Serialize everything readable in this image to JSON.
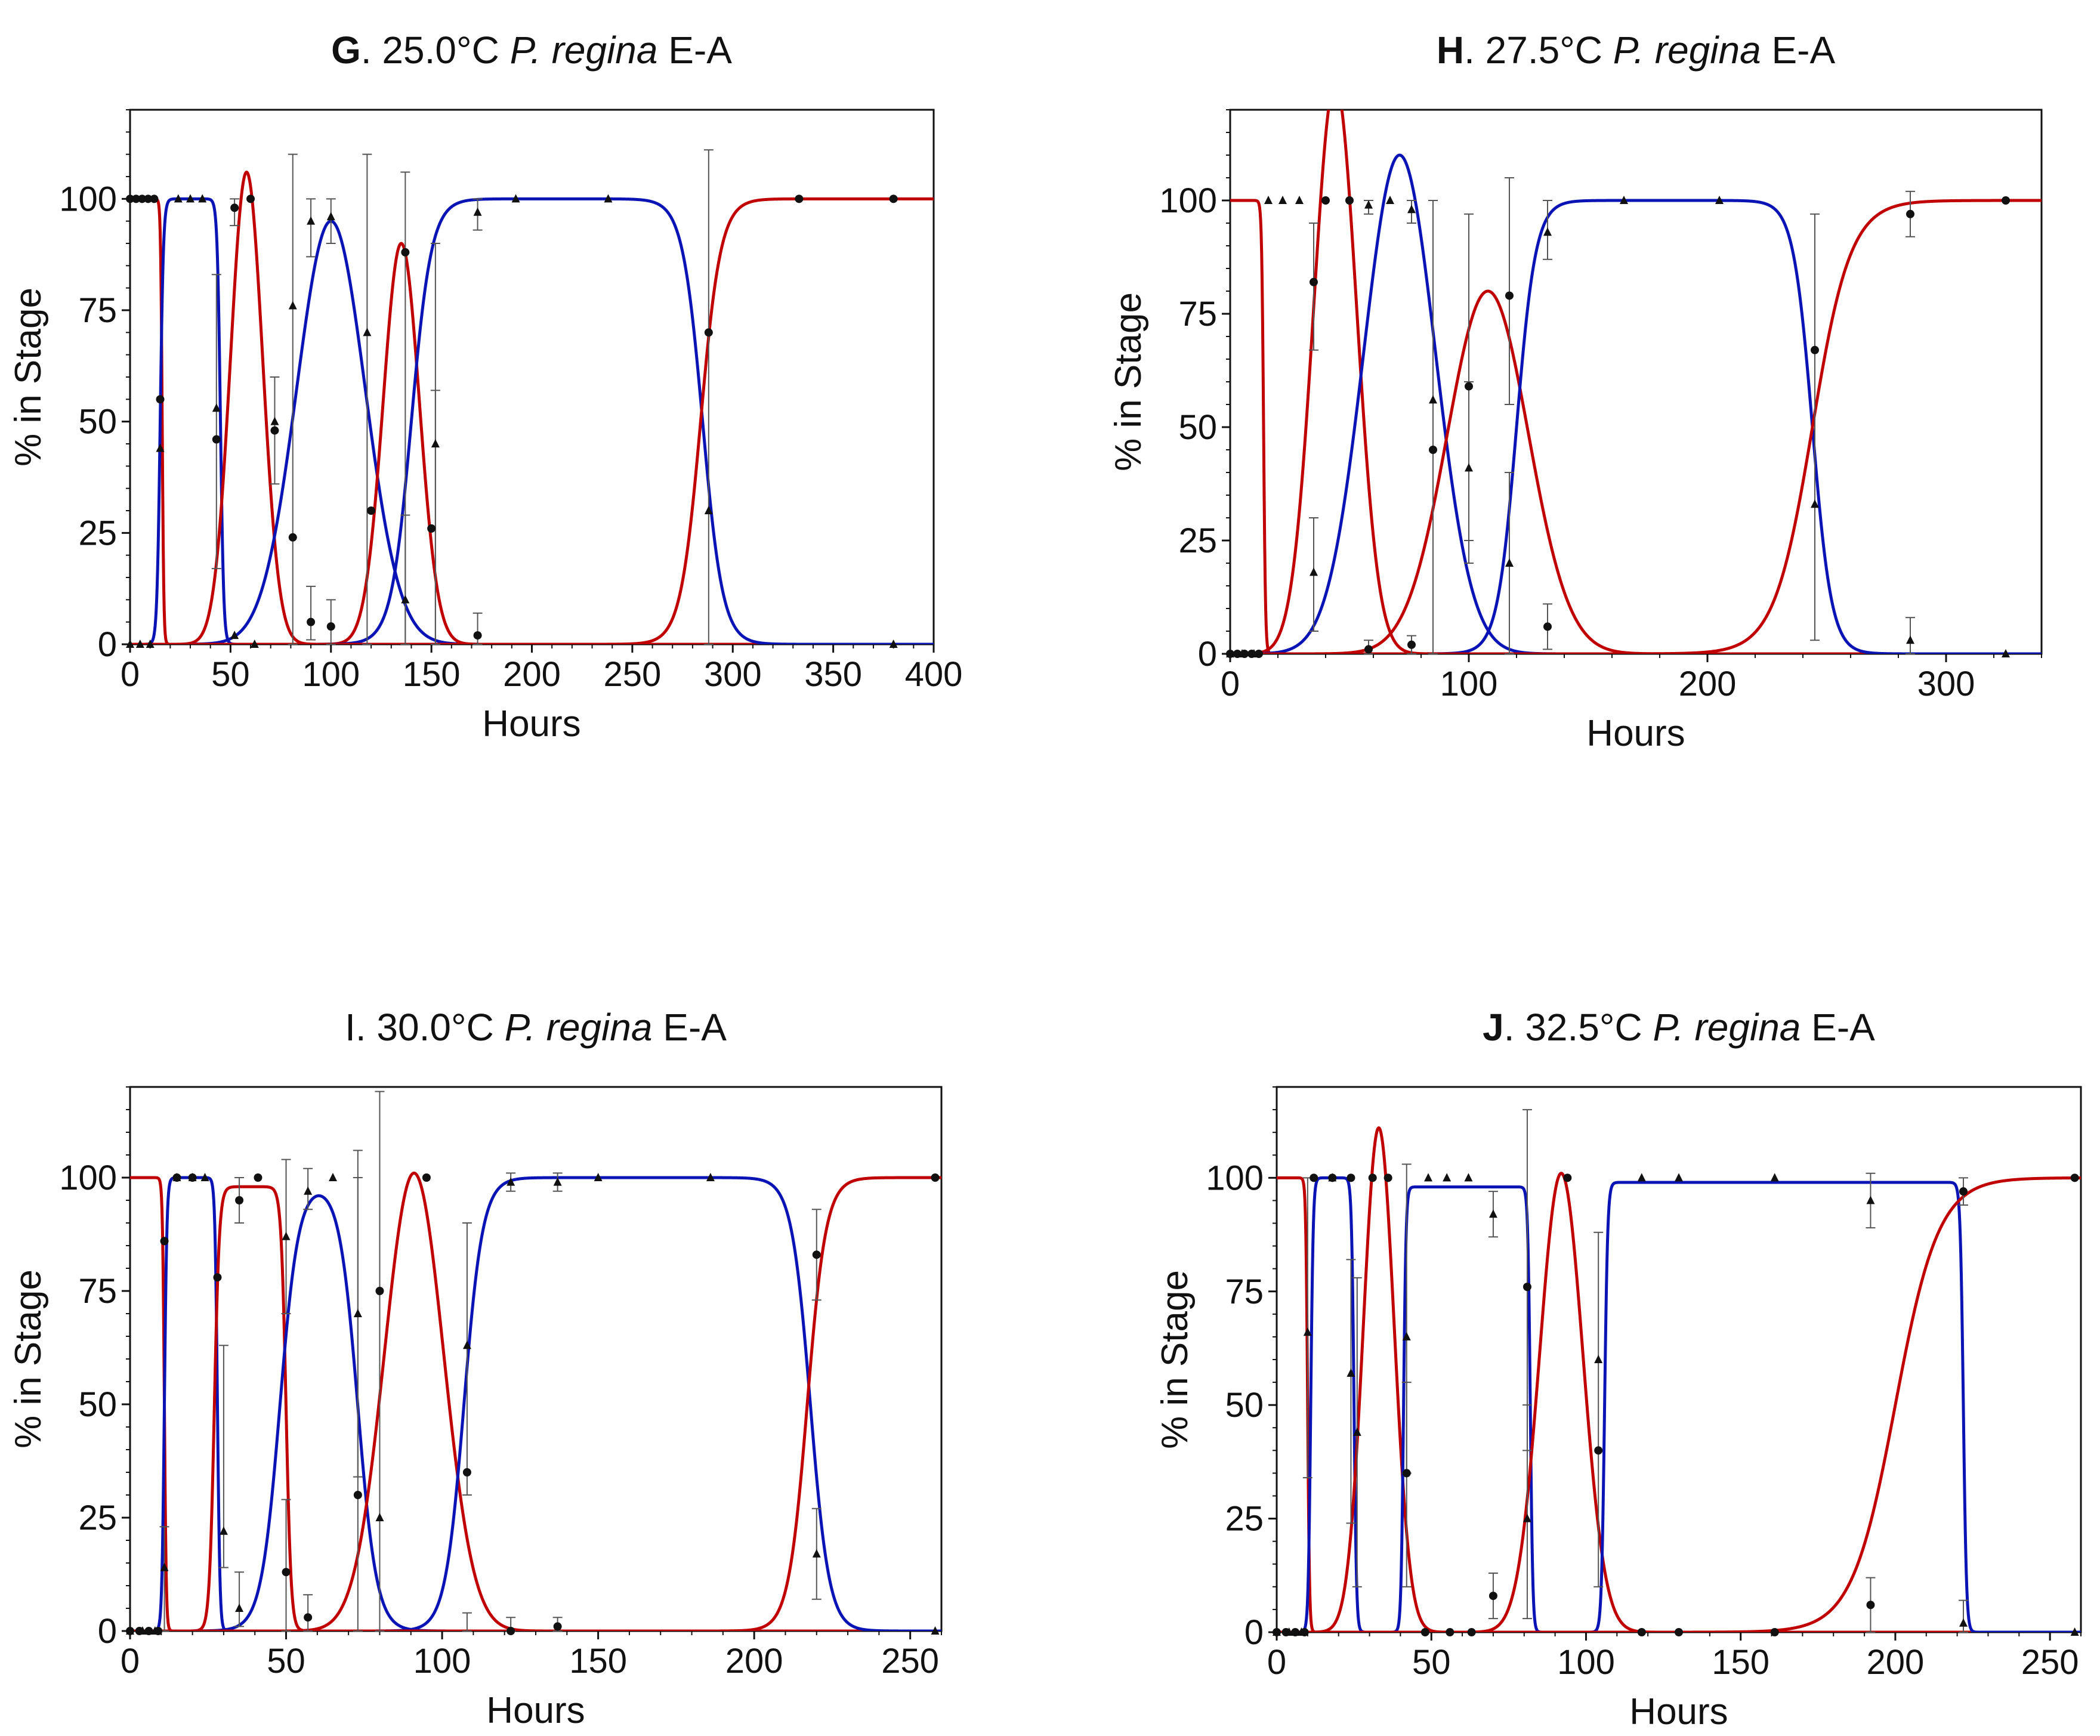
{
  "colors": {
    "red": "#c00000",
    "blue": "#0a14b4",
    "markers": "#111111"
  },
  "chart_data": [
    {
      "type": "line",
      "title": {
        "letter": "G",
        "rest": ". 25.0°C ",
        "species": "P. regina",
        "suffix": " E-A"
      },
      "xlabel": "Hours",
      "ylabel": "% in Stage",
      "xlim": [
        0,
        400
      ],
      "ylim": [
        0,
        120
      ],
      "xticks": [
        "0",
        "50",
        "100",
        "150",
        "200",
        "250",
        "300",
        "350",
        "400"
      ],
      "yticks": [
        "0",
        "25",
        "50",
        "75",
        "100"
      ],
      "curves": [
        {
          "color": "red",
          "kind": "down",
          "c": 16,
          "w": 0.4
        },
        {
          "color": "blue",
          "kind": "band",
          "a": 15,
          "b": 45,
          "w": 0.8,
          "top": 100
        },
        {
          "color": "red",
          "kind": "peak",
          "c": 58,
          "s": 8,
          "top": 106
        },
        {
          "color": "blue",
          "kind": "peak",
          "c": 100,
          "s": 17,
          "top": 95
        },
        {
          "color": "red",
          "kind": "peak",
          "c": 135,
          "s": 9,
          "top": 90
        },
        {
          "color": "blue",
          "kind": "band",
          "a": 140,
          "b": 285,
          "w": 5,
          "top": 100
        },
        {
          "color": "red",
          "kind": "up",
          "c": 284,
          "w": 5
        }
      ],
      "circles": [
        [
          0,
          100
        ],
        [
          3,
          100
        ],
        [
          6,
          100
        ],
        [
          9,
          100
        ],
        [
          12,
          100
        ],
        [
          15,
          55
        ],
        [
          43,
          46
        ],
        [
          52,
          98
        ],
        [
          60,
          100
        ],
        [
          72,
          48
        ],
        [
          81,
          24
        ],
        [
          90,
          5
        ],
        [
          100,
          4
        ],
        [
          120,
          30
        ],
        [
          137,
          88
        ],
        [
          150,
          26
        ],
        [
          173,
          2
        ],
        [
          288,
          70
        ],
        [
          333,
          100
        ],
        [
          380,
          100
        ]
      ],
      "triangles": [
        [
          0,
          0
        ],
        [
          5,
          0
        ],
        [
          10,
          0
        ],
        [
          15,
          44
        ],
        [
          24,
          100
        ],
        [
          30,
          100
        ],
        [
          36,
          100
        ],
        [
          43,
          53
        ],
        [
          52,
          2
        ],
        [
          62,
          0
        ],
        [
          72,
          50
        ],
        [
          81,
          76
        ],
        [
          90,
          95
        ],
        [
          100,
          96
        ],
        [
          118,
          70
        ],
        [
          137,
          10
        ],
        [
          152,
          45
        ],
        [
          173,
          97
        ],
        [
          192,
          100
        ],
        [
          238,
          100
        ],
        [
          288,
          30
        ],
        [
          380,
          0
        ]
      ],
      "errorbars": [
        [
          43,
          17,
          83
        ],
        [
          52,
          94,
          100
        ],
        [
          72,
          36,
          60
        ],
        [
          81,
          0,
          110
        ],
        [
          90,
          1,
          13
        ],
        [
          90,
          87,
          100
        ],
        [
          100,
          0,
          10
        ],
        [
          100,
          90,
          100
        ],
        [
          118,
          0,
          110
        ],
        [
          137,
          0,
          106
        ],
        [
          137,
          0,
          29
        ],
        [
          152,
          0,
          90
        ],
        [
          152,
          0,
          57
        ],
        [
          173,
          0,
          7
        ],
        [
          173,
          93,
          100
        ],
        [
          288,
          0,
          111
        ]
      ]
    },
    {
      "type": "line",
      "title": {
        "letter": "H",
        "rest": ". 27.5°C ",
        "species": "P. regina",
        "suffix": " E-A"
      },
      "xlabel": "Hours",
      "ylabel": "% in Stage",
      "xlim": [
        0,
        340
      ],
      "ylim": [
        0,
        120
      ],
      "xticks": [
        "0",
        "100",
        "200",
        "300"
      ],
      "yticks": [
        "0",
        "25",
        "50",
        "75",
        "100"
      ],
      "curves": [
        {
          "color": "red",
          "kind": "down",
          "c": 14,
          "w": 0.4
        },
        {
          "color": "red",
          "kind": "peak",
          "c": 44,
          "s": 9,
          "top": 126
        },
        {
          "color": "blue",
          "kind": "peak",
          "c": 71,
          "s": 15,
          "top": 110
        },
        {
          "color": "red",
          "kind": "peak",
          "c": 108,
          "s": 17,
          "top": 80
        },
        {
          "color": "blue",
          "kind": "band",
          "a": 120,
          "b": 244,
          "w": 4,
          "top": 100
        },
        {
          "color": "red",
          "kind": "up",
          "c": 244,
          "w": 8
        }
      ],
      "circles": [
        [
          0,
          0
        ],
        [
          3,
          0
        ],
        [
          6,
          0
        ],
        [
          9,
          0
        ],
        [
          12,
          0
        ],
        [
          35,
          82
        ],
        [
          40,
          100
        ],
        [
          50,
          100
        ],
        [
          58,
          1
        ],
        [
          76,
          2
        ],
        [
          85,
          45
        ],
        [
          100,
          59
        ],
        [
          117,
          79
        ],
        [
          133,
          6
        ],
        [
          245,
          67
        ],
        [
          285,
          97
        ],
        [
          325,
          100
        ]
      ],
      "triangles": [
        [
          0,
          0
        ],
        [
          5,
          0
        ],
        [
          10,
          0
        ],
        [
          16,
          100
        ],
        [
          22,
          100
        ],
        [
          29,
          100
        ],
        [
          35,
          18
        ],
        [
          58,
          99
        ],
        [
          67,
          100
        ],
        [
          76,
          98
        ],
        [
          85,
          56
        ],
        [
          100,
          41
        ],
        [
          117,
          20
        ],
        [
          133,
          93
        ],
        [
          165,
          100
        ],
        [
          205,
          100
        ],
        [
          245,
          33
        ],
        [
          285,
          3
        ],
        [
          325,
          0
        ]
      ],
      "errorbars": [
        [
          35,
          67,
          95
        ],
        [
          35,
          5,
          30
        ],
        [
          58,
          97,
          100
        ],
        [
          58,
          0,
          3
        ],
        [
          76,
          95,
          100
        ],
        [
          76,
          0,
          4
        ],
        [
          85,
          0,
          100
        ],
        [
          100,
          25,
          97
        ],
        [
          100,
          20,
          60
        ],
        [
          117,
          55,
          105
        ],
        [
          117,
          0,
          40
        ],
        [
          133,
          1,
          11
        ],
        [
          133,
          87,
          100
        ],
        [
          245,
          3,
          97
        ],
        [
          285,
          92,
          102
        ],
        [
          285,
          0,
          8
        ]
      ]
    },
    {
      "type": "line",
      "title": {
        "letter": "",
        "rest": "I. 30.0°C ",
        "species": "P. regina",
        "suffix": " E-A"
      },
      "xlabel": "Hours",
      "ylabel": "% in Stage",
      "xlim": [
        0,
        260
      ],
      "ylim": [
        0,
        120
      ],
      "xticks": [
        "0",
        "50",
        "100",
        "150",
        "200",
        "250"
      ],
      "yticks": [
        "0",
        "25",
        "50",
        "75",
        "100"
      ],
      "curves": [
        {
          "color": "red",
          "kind": "down",
          "c": 11,
          "w": 0.3
        },
        {
          "color": "blue",
          "kind": "band",
          "a": 11,
          "b": 28,
          "w": 0.4,
          "top": 100
        },
        {
          "color": "red",
          "kind": "band",
          "a": 27,
          "b": 50,
          "w": 0.8,
          "top": 98
        },
        {
          "color": "blue",
          "kind": "band",
          "a": 48,
          "b": 73,
          "w": 3,
          "top": 99
        },
        {
          "color": "red",
          "kind": "peak",
          "c": 91,
          "s": 9.5,
          "top": 101
        },
        {
          "color": "blue",
          "kind": "band",
          "a": 107,
          "b": 218,
          "w": 3,
          "top": 100
        },
        {
          "color": "red",
          "kind": "up",
          "c": 217,
          "w": 3
        }
      ],
      "circles": [
        [
          0,
          0
        ],
        [
          3,
          0
        ],
        [
          6,
          0
        ],
        [
          9,
          0
        ],
        [
          11,
          86
        ],
        [
          15,
          100
        ],
        [
          20,
          100
        ],
        [
          28,
          78
        ],
        [
          35,
          95
        ],
        [
          41,
          100
        ],
        [
          50,
          13
        ],
        [
          57,
          3
        ],
        [
          73,
          30
        ],
        [
          80,
          75
        ],
        [
          95,
          100
        ],
        [
          108,
          35
        ],
        [
          122,
          0
        ],
        [
          137,
          1
        ],
        [
          220,
          83
        ],
        [
          258,
          100
        ]
      ],
      "triangles": [
        [
          0,
          0
        ],
        [
          4,
          0
        ],
        [
          8,
          0
        ],
        [
          11,
          14
        ],
        [
          15,
          100
        ],
        [
          20,
          100
        ],
        [
          24,
          100
        ],
        [
          30,
          22
        ],
        [
          35,
          5
        ],
        [
          50,
          87
        ],
        [
          57,
          97
        ],
        [
          65,
          100
        ],
        [
          73,
          70
        ],
        [
          80,
          25
        ],
        [
          108,
          63
        ],
        [
          122,
          99
        ],
        [
          137,
          99
        ],
        [
          150,
          100
        ],
        [
          186,
          100
        ],
        [
          220,
          17
        ],
        [
          258,
          0
        ]
      ],
      "errorbars": [
        [
          11,
          0,
          23
        ],
        [
          30,
          14,
          63
        ],
        [
          35,
          90,
          100
        ],
        [
          35,
          1,
          13
        ],
        [
          50,
          0,
          29
        ],
        [
          50,
          70,
          104
        ],
        [
          57,
          93,
          102
        ],
        [
          57,
          0,
          8
        ],
        [
          73,
          0,
          106
        ],
        [
          73,
          34,
          100
        ],
        [
          80,
          0,
          119
        ],
        [
          108,
          30,
          90
        ],
        [
          108,
          0,
          4
        ],
        [
          122,
          97,
          101
        ],
        [
          122,
          0,
          3
        ],
        [
          137,
          97,
          101
        ],
        [
          137,
          0,
          3
        ],
        [
          220,
          73,
          93
        ],
        [
          220,
          7,
          27
        ]
      ]
    },
    {
      "type": "line",
      "title": {
        "letter": "J",
        "rest": ". 32.5°C ",
        "species": "P. regina",
        "suffix": " E-A"
      },
      "xlabel": "Hours",
      "ylabel": "% in Stage",
      "xlim": [
        0,
        260
      ],
      "ylim": [
        0,
        120
      ],
      "xticks": [
        "0",
        "50",
        "100",
        "150",
        "200",
        "250"
      ],
      "yticks": [
        "0",
        "25",
        "50",
        "75",
        "100"
      ],
      "curves": [
        {
          "color": "red",
          "kind": "down",
          "c": 10,
          "w": 0.3
        },
        {
          "color": "blue",
          "kind": "band",
          "a": 11,
          "b": 25,
          "w": 0.4,
          "top": 100
        },
        {
          "color": "red",
          "kind": "peak",
          "c": 33,
          "s": 5,
          "top": 111
        },
        {
          "color": "blue",
          "kind": "band",
          "a": 41,
          "b": 82,
          "w": 0.4,
          "top": 98
        },
        {
          "color": "red",
          "kind": "peak",
          "c": 92,
          "s": 7,
          "top": 101
        },
        {
          "color": "blue",
          "kind": "band",
          "a": 106,
          "b": 222,
          "w": 0.5,
          "top": 99
        },
        {
          "color": "red",
          "kind": "up",
          "c": 200,
          "w": 7
        }
      ],
      "circles": [
        [
          0,
          0
        ],
        [
          3,
          0
        ],
        [
          6,
          0
        ],
        [
          9,
          0
        ],
        [
          12,
          100
        ],
        [
          18,
          100
        ],
        [
          24,
          100
        ],
        [
          31,
          100
        ],
        [
          36,
          100
        ],
        [
          42,
          35
        ],
        [
          48,
          0
        ],
        [
          56,
          0
        ],
        [
          63,
          0
        ],
        [
          70,
          8
        ],
        [
          81,
          76
        ],
        [
          94,
          100
        ],
        [
          104,
          40
        ],
        [
          118,
          0
        ],
        [
          130,
          0
        ],
        [
          161,
          0
        ],
        [
          192,
          6
        ],
        [
          222,
          97
        ],
        [
          258,
          100
        ]
      ],
      "triangles": [
        [
          0,
          0
        ],
        [
          4,
          0
        ],
        [
          8,
          0
        ],
        [
          10,
          66
        ],
        [
          18,
          100
        ],
        [
          24,
          57
        ],
        [
          26,
          44
        ],
        [
          42,
          65
        ],
        [
          49,
          100
        ],
        [
          55,
          100
        ],
        [
          62,
          100
        ],
        [
          70,
          92
        ],
        [
          81,
          25
        ],
        [
          104,
          60
        ],
        [
          118,
          100
        ],
        [
          130,
          100
        ],
        [
          161,
          100
        ],
        [
          192,
          95
        ],
        [
          222,
          2
        ],
        [
          258,
          0
        ]
      ],
      "errorbars": [
        [
          10,
          34,
          100
        ],
        [
          24,
          24,
          82
        ],
        [
          26,
          10,
          78
        ],
        [
          42,
          35,
          103
        ],
        [
          42,
          10,
          55
        ],
        [
          70,
          3,
          13
        ],
        [
          70,
          87,
          97
        ],
        [
          81,
          40,
          115
        ],
        [
          81,
          3,
          50
        ],
        [
          104,
          10,
          88
        ],
        [
          192,
          0,
          12
        ],
        [
          192,
          89,
          101
        ],
        [
          222,
          94,
          100
        ],
        [
          222,
          0,
          7
        ]
      ]
    }
  ]
}
